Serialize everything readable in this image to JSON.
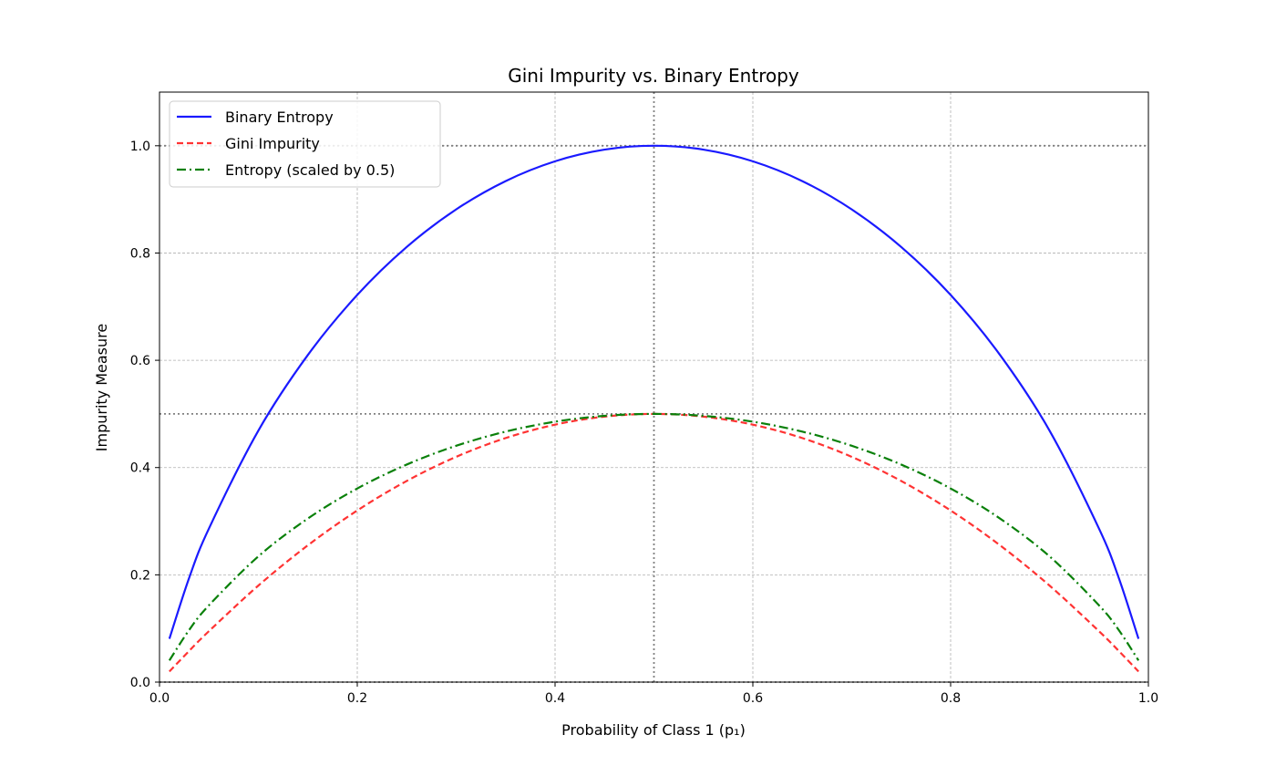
{
  "chart_data": {
    "type": "line",
    "title": "Gini Impurity vs. Binary Entropy",
    "xlabel": "Probability of Class 1 (p₁)",
    "ylabel": "Impurity Measure",
    "xlim": [
      0,
      1
    ],
    "ylim": [
      0,
      1.1
    ],
    "xticks": [
      "0.0",
      "0.2",
      "0.4",
      "0.6",
      "0.8",
      "1.0"
    ],
    "yticks": [
      "0.0",
      "0.2",
      "0.4",
      "0.6",
      "0.8",
      "1.0"
    ],
    "grid": true,
    "legend_position": "top-left",
    "reference_lines": {
      "horizontal": [
        0,
        0.5,
        1.0
      ],
      "vertical": [
        0.5
      ],
      "color": "#808080",
      "style": "dotted"
    },
    "x": [
      0.01,
      0.03,
      0.05,
      0.1,
      0.15,
      0.2,
      0.25,
      0.3,
      0.35,
      0.4,
      0.45,
      0.5,
      0.55,
      0.6,
      0.65,
      0.7,
      0.75,
      0.8,
      0.85,
      0.9,
      0.95,
      0.97,
      0.99
    ],
    "series": [
      {
        "name": "Binary Entropy",
        "color": "#1a1aff",
        "style": "solid",
        "values": [
          0.0808,
          0.1944,
          0.2864,
          0.469,
          0.6098,
          0.7219,
          0.8113,
          0.8813,
          0.9341,
          0.971,
          0.9928,
          1.0,
          0.9928,
          0.971,
          0.9341,
          0.8813,
          0.8113,
          0.7219,
          0.6098,
          0.469,
          0.2864,
          0.1944,
          0.0808
        ]
      },
      {
        "name": "Gini Impurity",
        "color": "#ff3333",
        "style": "dashed",
        "values": [
          0.0198,
          0.0582,
          0.095,
          0.18,
          0.255,
          0.32,
          0.375,
          0.42,
          0.455,
          0.48,
          0.495,
          0.5,
          0.495,
          0.48,
          0.455,
          0.42,
          0.375,
          0.32,
          0.255,
          0.18,
          0.095,
          0.0582,
          0.0198
        ]
      },
      {
        "name": "Entropy (scaled by 0.5)",
        "color": "#0a800a",
        "style": "dashdot",
        "values": [
          0.0404,
          0.0972,
          0.1432,
          0.2345,
          0.3049,
          0.361,
          0.4056,
          0.4406,
          0.467,
          0.4855,
          0.4964,
          0.5,
          0.4964,
          0.4855,
          0.467,
          0.4406,
          0.4056,
          0.361,
          0.3049,
          0.2345,
          0.1432,
          0.0972,
          0.0404
        ]
      }
    ]
  }
}
